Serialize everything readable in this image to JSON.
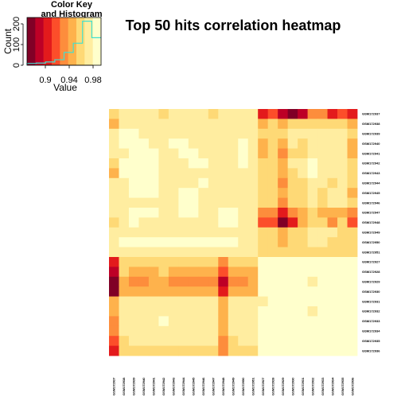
{
  "title": "Top 50 hits correlation heatmap",
  "color_key": {
    "title_line1": "Color Key",
    "title_line2": "and Histogram",
    "xlabel": "Value",
    "ylabel": "Count",
    "x_ticks": [
      "0.9",
      "0.94",
      "0.98"
    ],
    "y_ticks": [
      "0",
      "100",
      "200"
    ],
    "colors": [
      "#800026",
      "#bd0026",
      "#e31a1c",
      "#fc4e2a",
      "#fd8d3c",
      "#feb24c",
      "#fed976",
      "#ffeda0",
      "#ffffcc"
    ],
    "histogram_color": "#40e0d0"
  },
  "chart_data": {
    "type": "heatmap",
    "title": "Top 50 hits correlation heatmap",
    "value_range": [
      0.87,
      1.0
    ],
    "row_labels": [
      "GSM172937",
      "GSM172938",
      "GSM172939",
      "GSM172940",
      "GSM172941",
      "GSM172942",
      "GSM172943",
      "GSM172944",
      "GSM172945",
      "GSM172946",
      "GSM172947",
      "GSM172948",
      "GSM172949",
      "GSM172950",
      "GSM172951",
      "GSM172927",
      "GSM172928",
      "GSM172929",
      "GSM172930",
      "GSM172931",
      "GSM172932",
      "GSM172933",
      "GSM172934",
      "GSM172935",
      "GSM172936"
    ],
    "column_labels": [
      "GSM172937",
      "GSM172938",
      "GSM172939",
      "GSM172940",
      "GSM172941",
      "GSM172942",
      "GSM172943",
      "GSM172944",
      "GSM172945",
      "GSM172946",
      "GSM172947",
      "GSM172948",
      "GSM172949",
      "GSM172950",
      "GSM172951",
      "GSM172927",
      "GSM172928",
      "GSM172929",
      "GSM172930",
      "GSM172931",
      "GSM172932",
      "GSM172933",
      "GSM172934",
      "GSM172935",
      "GSM172936"
    ],
    "color_levels": [
      [
        6,
        7,
        7,
        7,
        7,
        6,
        7,
        7,
        7,
        7,
        6,
        7,
        7,
        7,
        7,
        2,
        3,
        1,
        0,
        1,
        4,
        4,
        2,
        3,
        2
      ],
      [
        5,
        7,
        7,
        7,
        7,
        7,
        7,
        7,
        7,
        7,
        7,
        7,
        7,
        7,
        7,
        5,
        6,
        5,
        6,
        6,
        6,
        6,
        6,
        6,
        5
      ],
      [
        7,
        8,
        8,
        7,
        7,
        7,
        7,
        7,
        7,
        7,
        7,
        7,
        7,
        7,
        7,
        6,
        6,
        6,
        7,
        7,
        7,
        7,
        7,
        7,
        6
      ],
      [
        7,
        8,
        8,
        8,
        7,
        7,
        8,
        8,
        7,
        7,
        7,
        7,
        7,
        8,
        7,
        5,
        6,
        5,
        7,
        6,
        7,
        7,
        7,
        7,
        5
      ],
      [
        7,
        7,
        8,
        8,
        8,
        7,
        7,
        8,
        8,
        7,
        7,
        7,
        7,
        8,
        7,
        5,
        6,
        4,
        6,
        6,
        7,
        7,
        7,
        7,
        5
      ],
      [
        6,
        8,
        8,
        8,
        8,
        7,
        7,
        7,
        8,
        8,
        7,
        7,
        7,
        8,
        7,
        6,
        6,
        5,
        7,
        7,
        8,
        7,
        7,
        7,
        6
      ],
      [
        5,
        8,
        8,
        8,
        8,
        7,
        7,
        7,
        7,
        7,
        7,
        7,
        7,
        7,
        7,
        6,
        6,
        5,
        6,
        7,
        8,
        7,
        7,
        7,
        6
      ],
      [
        7,
        7,
        8,
        8,
        8,
        7,
        7,
        7,
        7,
        8,
        7,
        7,
        7,
        7,
        7,
        6,
        6,
        4,
        6,
        6,
        7,
        7,
        6,
        7,
        6
      ],
      [
        7,
        7,
        8,
        8,
        8,
        7,
        7,
        8,
        8,
        7,
        7,
        7,
        7,
        7,
        7,
        6,
        6,
        5,
        6,
        6,
        7,
        6,
        7,
        7,
        5
      ],
      [
        7,
        7,
        7,
        7,
        7,
        7,
        7,
        8,
        8,
        7,
        7,
        7,
        7,
        7,
        7,
        6,
        6,
        4,
        6,
        6,
        7,
        6,
        7,
        7,
        6
      ],
      [
        7,
        7,
        8,
        8,
        8,
        7,
        7,
        8,
        8,
        7,
        7,
        8,
        8,
        7,
        7,
        4,
        4,
        2,
        4,
        5,
        6,
        5,
        5,
        5,
        4
      ],
      [
        6,
        7,
        8,
        7,
        7,
        7,
        7,
        7,
        7,
        7,
        7,
        8,
        8,
        7,
        7,
        3,
        3,
        0,
        2,
        5,
        6,
        6,
        4,
        6,
        3
      ],
      [
        7,
        7,
        7,
        7,
        7,
        7,
        7,
        7,
        7,
        7,
        7,
        7,
        7,
        7,
        7,
        6,
        6,
        5,
        6,
        6,
        7,
        7,
        7,
        6,
        6
      ],
      [
        7,
        8,
        8,
        8,
        8,
        8,
        8,
        8,
        8,
        8,
        8,
        8,
        8,
        7,
        7,
        6,
        6,
        5,
        6,
        6,
        7,
        7,
        6,
        6,
        6
      ],
      [
        7,
        7,
        7,
        7,
        7,
        7,
        7,
        7,
        7,
        7,
        7,
        7,
        7,
        7,
        7,
        6,
        6,
        6,
        6,
        6,
        6,
        6,
        6,
        6,
        6
      ],
      [
        2,
        6,
        6,
        6,
        6,
        6,
        6,
        6,
        6,
        6,
        6,
        4,
        6,
        6,
        6,
        8,
        8,
        8,
        8,
        8,
        8,
        8,
        8,
        8,
        8
      ],
      [
        1,
        6,
        5,
        5,
        5,
        6,
        5,
        5,
        5,
        5,
        5,
        3,
        5,
        5,
        5,
        8,
        8,
        8,
        8,
        8,
        8,
        8,
        8,
        8,
        8
      ],
      [
        0,
        5,
        4,
        4,
        5,
        5,
        4,
        4,
        4,
        4,
        4,
        1,
        4,
        4,
        5,
        8,
        8,
        8,
        8,
        8,
        7,
        8,
        8,
        8,
        8
      ],
      [
        0,
        5,
        5,
        5,
        5,
        5,
        5,
        5,
        5,
        5,
        5,
        2,
        5,
        5,
        5,
        8,
        8,
        8,
        8,
        8,
        8,
        8,
        8,
        8,
        8
      ],
      [
        5,
        7,
        7,
        7,
        7,
        7,
        7,
        7,
        7,
        7,
        7,
        5,
        7,
        7,
        7,
        7,
        8,
        8,
        8,
        8,
        8,
        8,
        8,
        8,
        8
      ],
      [
        5,
        7,
        7,
        7,
        7,
        7,
        7,
        7,
        7,
        7,
        7,
        5,
        7,
        7,
        7,
        8,
        8,
        8,
        8,
        8,
        7,
        8,
        8,
        8,
        8
      ],
      [
        4,
        7,
        7,
        7,
        7,
        8,
        7,
        7,
        7,
        7,
        7,
        5,
        7,
        7,
        7,
        8,
        8,
        8,
        8,
        8,
        8,
        8,
        8,
        8,
        8
      ],
      [
        4,
        7,
        7,
        7,
        7,
        7,
        7,
        7,
        7,
        7,
        7,
        5,
        7,
        7,
        7,
        8,
        8,
        8,
        8,
        8,
        8,
        8,
        8,
        8,
        8
      ],
      [
        3,
        6,
        7,
        7,
        7,
        7,
        7,
        7,
        7,
        7,
        7,
        4,
        6,
        7,
        7,
        8,
        8,
        8,
        8,
        8,
        8,
        8,
        8,
        8,
        8
      ],
      [
        2,
        6,
        6,
        6,
        6,
        6,
        6,
        6,
        6,
        6,
        6,
        4,
        6,
        6,
        6,
        8,
        8,
        8,
        8,
        8,
        8,
        8,
        8,
        8,
        8
      ]
    ],
    "histogram_counts": [
      10,
      12,
      18,
      30,
      70,
      120,
      240,
      150
    ],
    "histogram_ylim": [
      0,
      260
    ],
    "key_xlim": [
      0.87,
      1.0
    ]
  }
}
